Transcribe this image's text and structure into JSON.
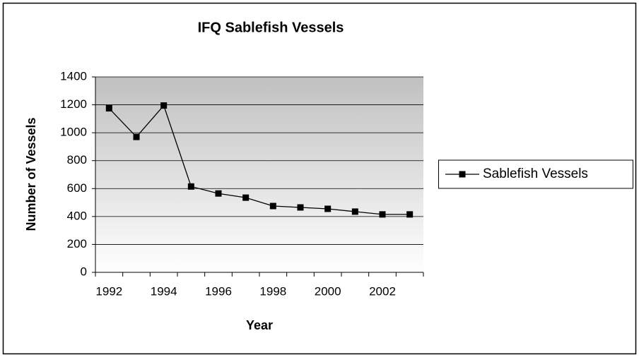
{
  "chart_data": {
    "type": "line",
    "title": "IFQ Sablefish Vessels",
    "x_label": "Year",
    "y_label": "Number of Vessels",
    "categories": [
      "1992",
      null,
      "1994",
      null,
      "1996",
      null,
      "1998",
      null,
      "2000",
      null,
      "2002",
      null
    ],
    "series": [
      {
        "name": "Sablefish Vessels",
        "color": "#000000",
        "values": [
          1175,
          970,
          1195,
          615,
          565,
          535,
          475,
          465,
          455,
          435,
          415,
          415
        ]
      }
    ],
    "ylim": [
      0,
      1400
    ],
    "yticks": [
      0,
      200,
      400,
      600,
      800,
      1000,
      1200,
      1400
    ],
    "grid": true,
    "legend": "right"
  }
}
